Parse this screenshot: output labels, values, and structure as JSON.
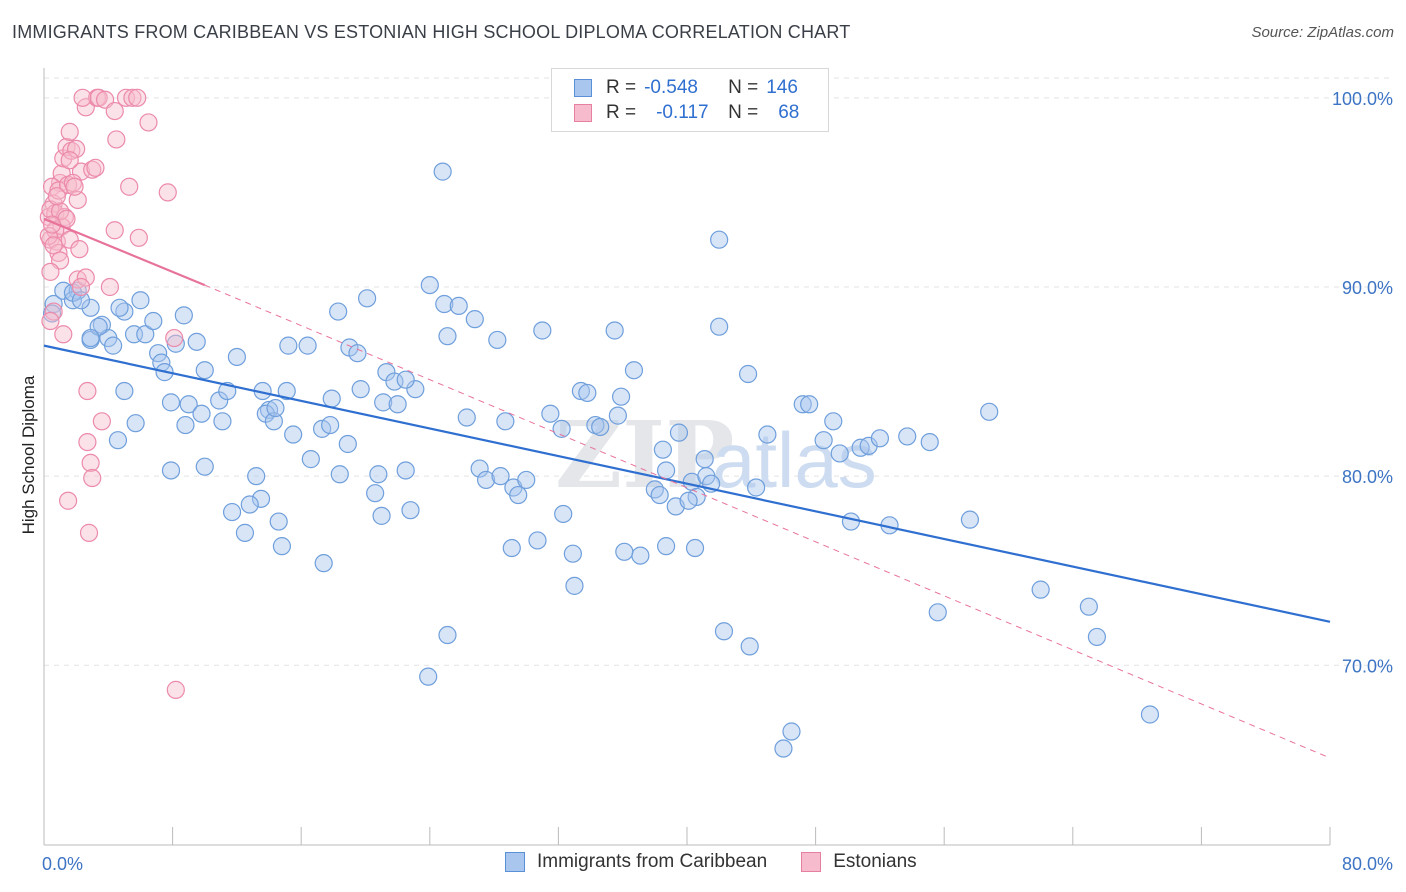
{
  "header": {
    "title": "IMMIGRANTS FROM CARIBBEAN VS ESTONIAN HIGH SCHOOL DIPLOMA CORRELATION CHART",
    "source": "Source: ZipAtlas.com"
  },
  "legend": {
    "rows": [
      {
        "r_label": "R =",
        "r_value": "-0.548",
        "n_label": "N =",
        "n_value": "146",
        "color": "#a9c6ee",
        "border": "#5b8fd6"
      },
      {
        "r_label": "R =",
        "r_value": "-0.117",
        "n_label": "N =",
        "n_value": "68",
        "color": "#f6bccd",
        "border": "#e77fa0"
      }
    ]
  },
  "bottom_legend": [
    {
      "label": "Immigrants from Caribbean",
      "color": "#a9c6ee",
      "border": "#5b8fd6"
    },
    {
      "label": "Estonians",
      "color": "#f6bccd",
      "border": "#e77fa0"
    }
  ],
  "watermark": {
    "zip": "ZIP",
    "atlas": "atlas"
  },
  "chart_data": {
    "type": "scatter",
    "title": "IMMIGRANTS FROM CARIBBEAN VS ESTONIAN HIGH SCHOOL DIPLOMA CORRELATION CHART",
    "xlabel": "",
    "ylabel": "High School Diploma",
    "xlim": [
      0,
      80
    ],
    "ylim": [
      60.5,
      102
    ],
    "x_tick_labels": [
      "0.0%",
      "80.0%"
    ],
    "y_ticks": [
      70,
      80,
      90,
      100
    ],
    "y_tick_labels": [
      "70.0%",
      "80.0%",
      "90.0%",
      "100.0%"
    ],
    "grid": true,
    "colors": {
      "blue": "#3d74c4",
      "blue_fill": "#a9c6ee",
      "pink_line": "#e8739a",
      "pink_fill": "#f6bccd"
    },
    "series": [
      {
        "name": "Immigrants from Caribbean",
        "trend": {
          "x": [
            0,
            80
          ],
          "y": [
            86.9,
            72.3
          ],
          "style": "solid"
        },
        "points": [
          [
            0.6,
            89.1
          ],
          [
            0.5,
            88.6
          ],
          [
            1.2,
            89.8
          ],
          [
            2.1,
            89.8
          ],
          [
            1.8,
            89.3
          ],
          [
            2.9,
            88.9
          ],
          [
            3.6,
            88.0
          ],
          [
            4.0,
            87.3
          ],
          [
            2.9,
            87.2
          ],
          [
            4.3,
            86.9
          ],
          [
            5.0,
            88.7
          ],
          [
            4.7,
            88.9
          ],
          [
            5.6,
            87.5
          ],
          [
            6.3,
            87.5
          ],
          [
            6.8,
            88.2
          ],
          [
            7.1,
            86.5
          ],
          [
            7.3,
            86.0
          ],
          [
            8.2,
            87.0
          ],
          [
            8.7,
            88.5
          ],
          [
            9.5,
            87.1
          ],
          [
            7.5,
            85.5
          ],
          [
            10.0,
            85.6
          ],
          [
            10.9,
            84.0
          ],
          [
            12.0,
            86.3
          ],
          [
            7.9,
            83.9
          ],
          [
            9.0,
            83.8
          ],
          [
            9.8,
            83.3
          ],
          [
            11.1,
            82.9
          ],
          [
            11.4,
            84.5
          ],
          [
            5.0,
            84.5
          ],
          [
            13.6,
            84.5
          ],
          [
            14.0,
            83.5
          ],
          [
            13.8,
            83.3
          ],
          [
            14.3,
            82.9
          ],
          [
            15.2,
            86.9
          ],
          [
            16.4,
            86.9
          ],
          [
            15.1,
            84.5
          ],
          [
            15.5,
            82.2
          ],
          [
            16.6,
            80.9
          ],
          [
            17.3,
            82.5
          ],
          [
            17.8,
            82.7
          ],
          [
            18.3,
            88.7
          ],
          [
            19.0,
            86.8
          ],
          [
            19.5,
            86.5
          ],
          [
            19.7,
            84.6
          ],
          [
            18.9,
            81.7
          ],
          [
            18.4,
            80.1
          ],
          [
            20.1,
            89.4
          ],
          [
            20.8,
            80.1
          ],
          [
            21.1,
            83.9
          ],
          [
            21.3,
            85.5
          ],
          [
            21.8,
            85.0
          ],
          [
            22.0,
            83.8
          ],
          [
            20.6,
            79.1
          ],
          [
            21.0,
            77.9
          ],
          [
            22.5,
            80.3
          ],
          [
            23.1,
            84.6
          ],
          [
            22.8,
            78.2
          ],
          [
            24.0,
            90.1
          ],
          [
            24.9,
            89.1
          ],
          [
            25.1,
            87.4
          ],
          [
            25.8,
            89.0
          ],
          [
            26.3,
            83.1
          ],
          [
            26.8,
            88.3
          ],
          [
            27.1,
            80.4
          ],
          [
            27.5,
            79.8
          ],
          [
            28.4,
            80.0
          ],
          [
            28.2,
            87.2
          ],
          [
            28.7,
            82.9
          ],
          [
            29.2,
            79.4
          ],
          [
            29.5,
            79.0
          ],
          [
            30.0,
            79.8
          ],
          [
            29.1,
            76.2
          ],
          [
            30.7,
            76.6
          ],
          [
            31.0,
            87.7
          ],
          [
            31.5,
            83.3
          ],
          [
            32.2,
            82.5
          ],
          [
            32.3,
            78.0
          ],
          [
            32.9,
            75.9
          ],
          [
            33.4,
            84.5
          ],
          [
            33.8,
            84.4
          ],
          [
            34.3,
            82.7
          ],
          [
            34.6,
            82.6
          ],
          [
            35.5,
            87.7
          ],
          [
            35.9,
            84.2
          ],
          [
            35.7,
            83.2
          ],
          [
            36.7,
            85.6
          ],
          [
            37.1,
            75.8
          ],
          [
            38.0,
            79.3
          ],
          [
            38.7,
            80.3
          ],
          [
            38.5,
            81.4
          ],
          [
            38.3,
            79.0
          ],
          [
            39.3,
            78.4
          ],
          [
            39.5,
            82.3
          ],
          [
            40.3,
            79.7
          ],
          [
            40.6,
            78.9
          ],
          [
            40.1,
            78.7
          ],
          [
            41.1,
            80.9
          ],
          [
            41.2,
            80.0
          ],
          [
            41.5,
            79.6
          ],
          [
            42.0,
            87.9
          ],
          [
            42.0,
            92.5
          ],
          [
            42.3,
            71.8
          ],
          [
            43.8,
            85.4
          ],
          [
            43.9,
            71.0
          ],
          [
            44.3,
            79.4
          ],
          [
            45.0,
            82.2
          ],
          [
            46.0,
            65.6
          ],
          [
            46.5,
            66.5
          ],
          [
            47.2,
            83.8
          ],
          [
            47.6,
            83.8
          ],
          [
            48.5,
            81.9
          ],
          [
            49.1,
            82.9
          ],
          [
            49.5,
            81.2
          ],
          [
            50.2,
            77.6
          ],
          [
            50.8,
            81.5
          ],
          [
            51.3,
            81.6
          ],
          [
            52.0,
            82.0
          ],
          [
            52.6,
            77.4
          ],
          [
            53.7,
            82.1
          ],
          [
            55.1,
            81.8
          ],
          [
            55.6,
            72.8
          ],
          [
            57.6,
            77.7
          ],
          [
            58.8,
            83.4
          ],
          [
            62.0,
            74.0
          ],
          [
            65.0,
            73.1
          ],
          [
            65.5,
            71.5
          ],
          [
            68.8,
            67.4
          ],
          [
            23.9,
            69.4
          ],
          [
            25.1,
            71.6
          ],
          [
            17.4,
            75.4
          ],
          [
            24.8,
            96.1
          ],
          [
            6.0,
            89.3
          ],
          [
            14.8,
            76.3
          ],
          [
            14.6,
            77.6
          ],
          [
            12.5,
            77.0
          ],
          [
            17.9,
            84.1
          ],
          [
            3.4,
            87.9
          ],
          [
            2.9,
            87.3
          ],
          [
            5.7,
            82.8
          ],
          [
            8.8,
            82.7
          ],
          [
            4.6,
            81.9
          ],
          [
            10.0,
            80.5
          ],
          [
            13.5,
            78.8
          ],
          [
            1.8,
            89.7
          ],
          [
            2.3,
            89.3
          ],
          [
            11.7,
            78.1
          ],
          [
            12.8,
            78.5
          ],
          [
            22.5,
            85.1
          ],
          [
            14.4,
            83.6
          ],
          [
            13.2,
            80.0
          ],
          [
            7.9,
            80.3
          ],
          [
            33.0,
            74.2
          ],
          [
            36.1,
            76.0
          ],
          [
            38.7,
            76.3
          ],
          [
            40.5,
            76.2
          ]
        ]
      },
      {
        "name": "Estonians",
        "trend": {
          "x": [
            0,
            10,
            80
          ],
          "y": [
            93.6,
            90.1,
            65.1
          ],
          "style": "solid-then-dashed"
        },
        "points": [
          [
            0.3,
            93.7
          ],
          [
            0.4,
            92.5
          ],
          [
            0.6,
            94.4
          ],
          [
            0.7,
            93.9
          ],
          [
            0.8,
            92.4
          ],
          [
            0.9,
            91.8
          ],
          [
            1.0,
            95.5
          ],
          [
            1.1,
            96.0
          ],
          [
            0.5,
            95.3
          ],
          [
            0.4,
            94.1
          ],
          [
            0.9,
            95.1
          ],
          [
            1.2,
            96.8
          ],
          [
            1.4,
            97.4
          ],
          [
            1.6,
            98.2
          ],
          [
            1.7,
            97.2
          ],
          [
            2.0,
            97.3
          ],
          [
            2.3,
            96.1
          ],
          [
            1.5,
            95.4
          ],
          [
            1.8,
            95.5
          ],
          [
            2.1,
            94.6
          ],
          [
            1.3,
            93.7
          ],
          [
            1.1,
            93.2
          ],
          [
            1.6,
            92.5
          ],
          [
            2.2,
            92.0
          ],
          [
            2.6,
            99.5
          ],
          [
            3.3,
            100.0
          ],
          [
            2.4,
            100.0
          ],
          [
            3.4,
            100.0
          ],
          [
            3.8,
            99.9
          ],
          [
            4.4,
            99.3
          ],
          [
            5.1,
            100.0
          ],
          [
            5.5,
            100.0
          ],
          [
            5.8,
            100.0
          ],
          [
            6.5,
            98.7
          ],
          [
            4.5,
            97.8
          ],
          [
            3.0,
            96.2
          ],
          [
            1.0,
            94.0
          ],
          [
            0.7,
            93.0
          ],
          [
            0.3,
            92.7
          ],
          [
            0.6,
            92.2
          ],
          [
            3.2,
            96.3
          ],
          [
            5.3,
            95.3
          ],
          [
            7.7,
            95.0
          ],
          [
            4.4,
            93.0
          ],
          [
            5.9,
            92.6
          ],
          [
            1.0,
            91.4
          ],
          [
            2.1,
            90.4
          ],
          [
            2.6,
            90.5
          ],
          [
            4.1,
            90.0
          ],
          [
            2.3,
            90.0
          ],
          [
            1.2,
            87.5
          ],
          [
            8.1,
            87.3
          ],
          [
            0.6,
            88.7
          ],
          [
            0.4,
            88.2
          ],
          [
            2.7,
            84.5
          ],
          [
            3.6,
            82.9
          ],
          [
            2.7,
            81.8
          ],
          [
            2.9,
            80.7
          ],
          [
            3.0,
            79.9
          ],
          [
            1.5,
            78.7
          ],
          [
            2.8,
            77.0
          ],
          [
            8.2,
            68.7
          ],
          [
            1.4,
            93.6
          ],
          [
            1.9,
            95.3
          ],
          [
            0.8,
            94.8
          ],
          [
            1.6,
            96.7
          ],
          [
            0.5,
            93.3
          ],
          [
            0.4,
            90.8
          ]
        ]
      }
    ]
  }
}
